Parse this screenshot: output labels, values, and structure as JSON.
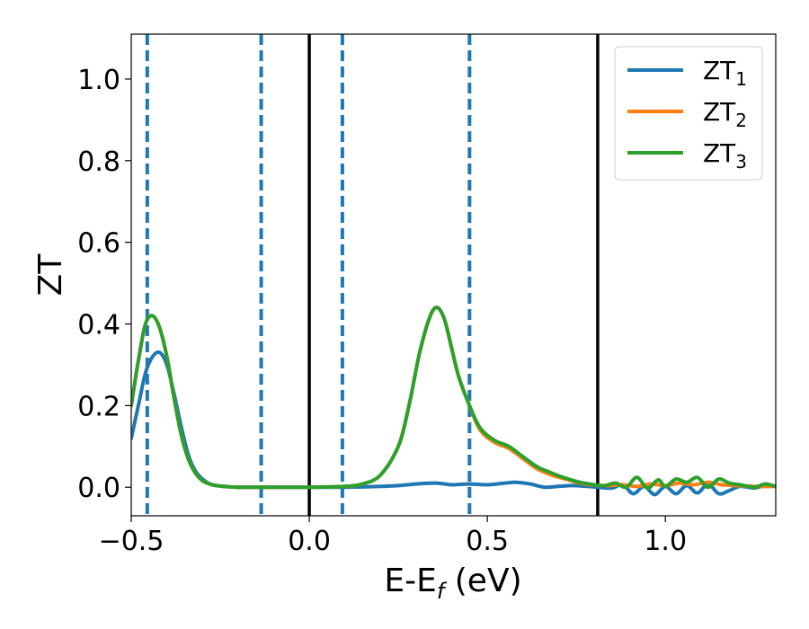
{
  "chart_data": {
    "type": "line",
    "xlabel": "E-E",
    "xlabel_sub": "f",
    "xlabel_unit": " (eV)",
    "ylabel": "ZT",
    "xlim": [
      -0.5,
      1.31
    ],
    "ylim": [
      -0.07,
      1.11
    ],
    "xticks": [
      -0.5,
      0.0,
      0.5,
      1.0
    ],
    "xtick_labels": [
      "−0.5",
      "0.0",
      "0.5",
      "1.0"
    ],
    "yticks": [
      0.0,
      0.2,
      0.4,
      0.6,
      0.8,
      1.0
    ],
    "ytick_labels": [
      "0.0",
      "0.2",
      "0.4",
      "0.6",
      "0.8",
      "1.0"
    ],
    "grid": false,
    "legend_position": "top-right",
    "vlines_dashed": [
      -0.455,
      -0.135,
      0.093,
      0.45
    ],
    "vlines_solid": [
      0.0,
      0.81
    ],
    "series": [
      {
        "name": "ZT",
        "name_sub": "1",
        "color": "#1f77b4",
        "x": [
          -0.5,
          -0.48,
          -0.46,
          -0.44,
          -0.42,
          -0.4,
          -0.38,
          -0.36,
          -0.34,
          -0.32,
          -0.3,
          -0.28,
          -0.26,
          -0.24,
          -0.2,
          -0.1,
          0.0,
          0.1,
          0.2,
          0.25,
          0.3,
          0.35,
          0.38,
          0.4,
          0.45,
          0.5,
          0.55,
          0.58,
          0.62,
          0.66,
          0.7,
          0.74,
          0.78,
          0.81,
          0.85,
          0.88,
          0.91,
          0.94,
          0.97,
          1.0,
          1.03,
          1.06,
          1.09,
          1.12,
          1.15,
          1.18,
          1.21,
          1.25,
          1.28,
          1.31
        ],
        "y": [
          0.12,
          0.2,
          0.28,
          0.32,
          0.33,
          0.3,
          0.23,
          0.15,
          0.08,
          0.04,
          0.02,
          0.008,
          0.004,
          0.002,
          0.0,
          0.0,
          0.0,
          0.0,
          0.002,
          0.004,
          0.008,
          0.01,
          0.008,
          0.006,
          0.008,
          0.006,
          0.01,
          0.012,
          0.008,
          0.0,
          0.002,
          0.004,
          0.002,
          0.0,
          -0.002,
          0.006,
          -0.016,
          0.002,
          -0.018,
          0.002,
          -0.016,
          0.004,
          -0.014,
          0.008,
          -0.016,
          -0.008,
          0.002,
          -0.002,
          0.004,
          0.002
        ]
      },
      {
        "name": "ZT",
        "name_sub": "2",
        "color": "#ff7f0e",
        "x": [
          -0.5,
          -0.48,
          -0.46,
          -0.44,
          -0.42,
          -0.4,
          -0.38,
          -0.36,
          -0.34,
          -0.32,
          -0.3,
          -0.28,
          -0.26,
          -0.24,
          -0.2,
          -0.1,
          0.0,
          0.1,
          0.15,
          0.2,
          0.25,
          0.28,
          0.31,
          0.34,
          0.36,
          0.38,
          0.4,
          0.42,
          0.45,
          0.48,
          0.52,
          0.56,
          0.6,
          0.64,
          0.68,
          0.72,
          0.76,
          0.8,
          0.84,
          0.88,
          0.92,
          0.96,
          1.0,
          1.04,
          1.08,
          1.12,
          1.16,
          1.2,
          1.25,
          1.31
        ],
        "y": [
          0.2,
          0.31,
          0.4,
          0.42,
          0.39,
          0.32,
          0.22,
          0.13,
          0.07,
          0.035,
          0.016,
          0.008,
          0.004,
          0.002,
          0.0,
          0.0,
          0.0,
          0.002,
          0.008,
          0.03,
          0.1,
          0.2,
          0.33,
          0.42,
          0.44,
          0.41,
          0.34,
          0.27,
          0.2,
          0.14,
          0.11,
          0.095,
          0.07,
          0.045,
          0.03,
          0.02,
          0.01,
          0.005,
          0.004,
          0.006,
          0.002,
          0.008,
          0.004,
          0.01,
          0.006,
          0.012,
          0.006,
          0.004,
          0.002,
          0.002
        ]
      },
      {
        "name": "ZT",
        "name_sub": "3",
        "color": "#2ca02c",
        "x": [
          -0.5,
          -0.48,
          -0.46,
          -0.44,
          -0.42,
          -0.4,
          -0.38,
          -0.36,
          -0.34,
          -0.32,
          -0.3,
          -0.28,
          -0.26,
          -0.24,
          -0.2,
          -0.1,
          0.0,
          0.1,
          0.15,
          0.2,
          0.25,
          0.28,
          0.31,
          0.34,
          0.36,
          0.38,
          0.4,
          0.42,
          0.45,
          0.48,
          0.52,
          0.56,
          0.6,
          0.64,
          0.68,
          0.72,
          0.76,
          0.8,
          0.83,
          0.86,
          0.89,
          0.92,
          0.95,
          0.98,
          1.0,
          1.03,
          1.06,
          1.09,
          1.12,
          1.15,
          1.18,
          1.21,
          1.25,
          1.28,
          1.31
        ],
        "y": [
          0.2,
          0.31,
          0.4,
          0.42,
          0.39,
          0.32,
          0.22,
          0.13,
          0.07,
          0.035,
          0.016,
          0.008,
          0.004,
          0.002,
          0.0,
          0.0,
          0.0,
          0.002,
          0.008,
          0.03,
          0.1,
          0.2,
          0.33,
          0.42,
          0.44,
          0.41,
          0.34,
          0.27,
          0.2,
          0.145,
          0.115,
          0.1,
          0.075,
          0.05,
          0.035,
          0.022,
          0.012,
          0.006,
          0.004,
          0.01,
          0.0,
          0.024,
          -0.002,
          0.018,
          0.002,
          0.02,
          0.012,
          0.024,
          0.0,
          0.02,
          0.01,
          0.006,
          0.0,
          0.008,
          0.002
        ]
      }
    ]
  }
}
